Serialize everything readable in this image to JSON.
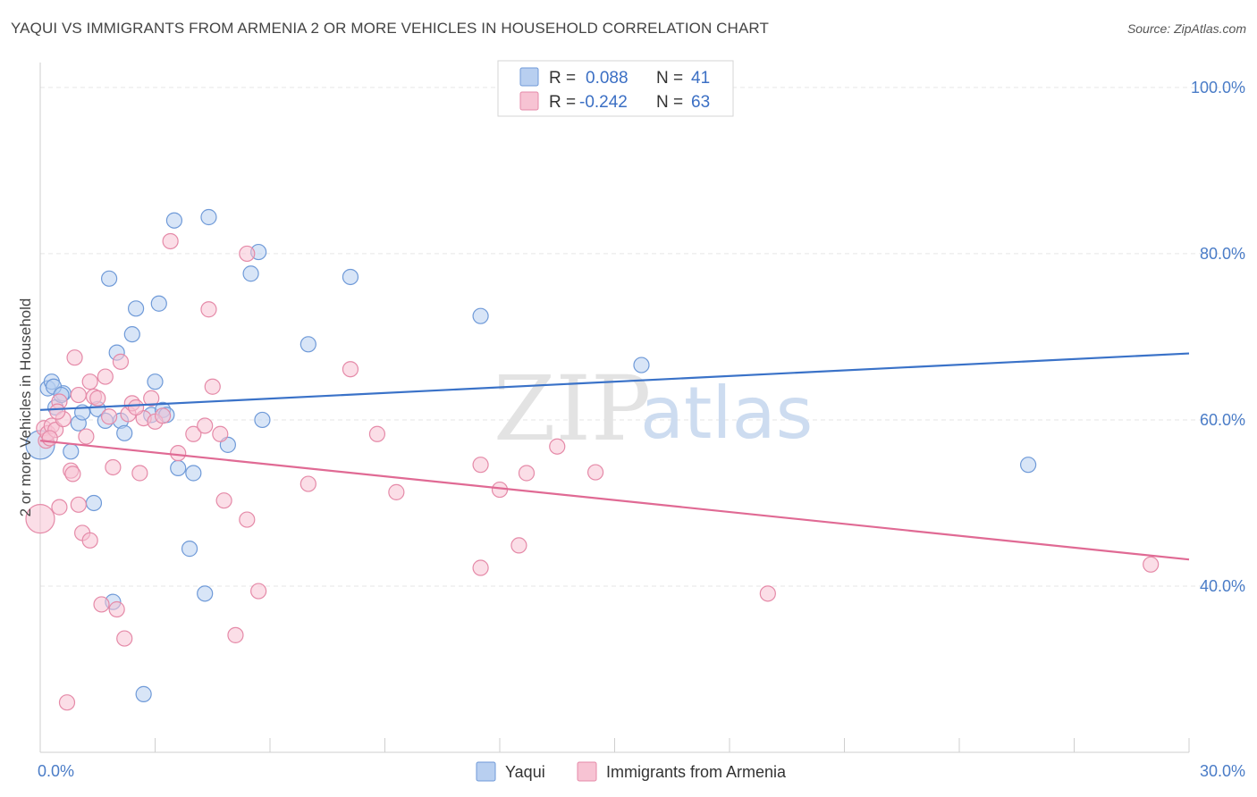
{
  "header": {
    "title": "YAQUI VS IMMIGRANTS FROM ARMENIA 2 OR MORE VEHICLES IN HOUSEHOLD CORRELATION CHART",
    "source": "Source: ZipAtlas.com"
  },
  "watermark": {
    "zip": "ZIP",
    "atlas": "atlas"
  },
  "legend_box": {
    "rows": [
      {
        "r_label": "R =",
        "r_value": "0.088",
        "n_label": "N =",
        "n_value": "41"
      },
      {
        "r_label": "R =",
        "r_value": "-0.242",
        "n_label": "N =",
        "n_value": "63"
      }
    ]
  },
  "colors": {
    "yaqui_fill": "#b8cff0",
    "yaqui_stroke": "#6f9ad8",
    "yaqui_line": "#3a72c8",
    "armenia_fill": "#f7c3d3",
    "armenia_stroke": "#e58aa8",
    "armenia_line": "#e06a94",
    "grid": "#e6e6e6",
    "tick_text": "#4a7cc7"
  },
  "chart_data": {
    "type": "scatter",
    "title": "YAQUI VS IMMIGRANTS FROM ARMENIA 2 OR MORE VEHICLES IN HOUSEHOLD CORRELATION CHART",
    "xlabel": "",
    "ylabel": "2 or more Vehicles in Household",
    "xlim": [
      0,
      30
    ],
    "ylim": [
      20,
      103
    ],
    "x_tick_labels": [
      "0.0%",
      "30.0%"
    ],
    "y_ticks": [
      40,
      60,
      80,
      100
    ],
    "y_tick_labels": [
      "40.0%",
      "60.0%",
      "80.0%",
      "100.0%"
    ],
    "grid": true,
    "legend_position": "top-center",
    "series": [
      {
        "name": "Yaqui",
        "color": "#6f9ad8",
        "trend": {
          "x": [
            0,
            30
          ],
          "y": [
            61.2,
            68.0
          ]
        },
        "points": [
          {
            "x": 0.0,
            "y": 57.0,
            "big": true
          },
          {
            "x": 0.2,
            "y": 63.8
          },
          {
            "x": 0.3,
            "y": 64.6
          },
          {
            "x": 0.4,
            "y": 61.5
          },
          {
            "x": 0.6,
            "y": 63.2
          },
          {
            "x": 0.8,
            "y": 56.2
          },
          {
            "x": 1.0,
            "y": 59.6
          },
          {
            "x": 1.1,
            "y": 60.9
          },
          {
            "x": 1.4,
            "y": 50.0
          },
          {
            "x": 1.5,
            "y": 61.3
          },
          {
            "x": 1.7,
            "y": 59.9
          },
          {
            "x": 1.8,
            "y": 77.0
          },
          {
            "x": 1.9,
            "y": 38.1
          },
          {
            "x": 2.0,
            "y": 68.1
          },
          {
            "x": 2.1,
            "y": 59.9
          },
          {
            "x": 2.2,
            "y": 58.4
          },
          {
            "x": 2.4,
            "y": 70.3
          },
          {
            "x": 2.5,
            "y": 73.4
          },
          {
            "x": 2.7,
            "y": 27.0
          },
          {
            "x": 2.9,
            "y": 60.6
          },
          {
            "x": 3.0,
            "y": 64.6
          },
          {
            "x": 3.1,
            "y": 74.0
          },
          {
            "x": 3.2,
            "y": 61.2
          },
          {
            "x": 3.3,
            "y": 60.6
          },
          {
            "x": 3.5,
            "y": 84.0
          },
          {
            "x": 3.6,
            "y": 54.2
          },
          {
            "x": 3.9,
            "y": 44.5
          },
          {
            "x": 4.0,
            "y": 53.6
          },
          {
            "x": 4.3,
            "y": 39.1
          },
          {
            "x": 4.4,
            "y": 84.4
          },
          {
            "x": 4.9,
            "y": 57.0
          },
          {
            "x": 5.5,
            "y": 77.6
          },
          {
            "x": 5.7,
            "y": 80.2
          },
          {
            "x": 5.8,
            "y": 60.0
          },
          {
            "x": 7.0,
            "y": 69.1
          },
          {
            "x": 8.1,
            "y": 77.2
          },
          {
            "x": 11.5,
            "y": 72.5
          },
          {
            "x": 15.7,
            "y": 66.6
          },
          {
            "x": 25.8,
            "y": 54.6
          },
          {
            "x": 0.35,
            "y": 64.0
          },
          {
            "x": 0.55,
            "y": 63.0
          }
        ]
      },
      {
        "name": "Immigrants from Armenia",
        "color": "#e58aa8",
        "trend": {
          "x": [
            0,
            30
          ],
          "y": [
            57.5,
            43.2
          ]
        },
        "points": [
          {
            "x": 0.0,
            "y": 48.1,
            "big": true
          },
          {
            "x": 0.1,
            "y": 59.0
          },
          {
            "x": 0.15,
            "y": 57.5
          },
          {
            "x": 0.2,
            "y": 58.4
          },
          {
            "x": 0.3,
            "y": 59.3
          },
          {
            "x": 0.4,
            "y": 58.8
          },
          {
            "x": 0.5,
            "y": 62.2
          },
          {
            "x": 0.5,
            "y": 49.5
          },
          {
            "x": 0.6,
            "y": 60.1
          },
          {
            "x": 0.7,
            "y": 26.0
          },
          {
            "x": 0.8,
            "y": 53.9
          },
          {
            "x": 0.85,
            "y": 53.5
          },
          {
            "x": 0.9,
            "y": 67.5
          },
          {
            "x": 1.0,
            "y": 49.8
          },
          {
            "x": 1.0,
            "y": 63.0
          },
          {
            "x": 1.1,
            "y": 46.4
          },
          {
            "x": 1.3,
            "y": 45.5
          },
          {
            "x": 1.3,
            "y": 64.6
          },
          {
            "x": 1.4,
            "y": 62.8
          },
          {
            "x": 1.5,
            "y": 62.6
          },
          {
            "x": 1.6,
            "y": 37.8
          },
          {
            "x": 1.7,
            "y": 65.2
          },
          {
            "x": 1.8,
            "y": 60.4
          },
          {
            "x": 1.9,
            "y": 54.3
          },
          {
            "x": 2.0,
            "y": 37.2
          },
          {
            "x": 2.1,
            "y": 67.0
          },
          {
            "x": 2.2,
            "y": 33.7
          },
          {
            "x": 2.3,
            "y": 60.7
          },
          {
            "x": 2.4,
            "y": 62.0
          },
          {
            "x": 2.6,
            "y": 53.6
          },
          {
            "x": 2.7,
            "y": 60.2
          },
          {
            "x": 2.9,
            "y": 62.6
          },
          {
            "x": 3.0,
            "y": 59.8
          },
          {
            "x": 3.4,
            "y": 81.5
          },
          {
            "x": 3.6,
            "y": 56.0
          },
          {
            "x": 4.0,
            "y": 58.3
          },
          {
            "x": 4.3,
            "y": 59.3
          },
          {
            "x": 4.4,
            "y": 73.3
          },
          {
            "x": 4.5,
            "y": 64.0
          },
          {
            "x": 4.7,
            "y": 58.3
          },
          {
            "x": 4.8,
            "y": 50.3
          },
          {
            "x": 5.1,
            "y": 34.1
          },
          {
            "x": 5.4,
            "y": 48.0
          },
          {
            "x": 5.4,
            "y": 80.0
          },
          {
            "x": 5.7,
            "y": 39.4
          },
          {
            "x": 7.0,
            "y": 52.3
          },
          {
            "x": 8.1,
            "y": 66.1
          },
          {
            "x": 8.8,
            "y": 58.3
          },
          {
            "x": 9.3,
            "y": 51.3
          },
          {
            "x": 11.5,
            "y": 54.6
          },
          {
            "x": 11.5,
            "y": 42.2
          },
          {
            "x": 12.0,
            "y": 51.6
          },
          {
            "x": 12.5,
            "y": 44.9
          },
          {
            "x": 12.7,
            "y": 53.6
          },
          {
            "x": 13.5,
            "y": 56.8
          },
          {
            "x": 14.5,
            "y": 53.7
          },
          {
            "x": 19.0,
            "y": 39.1
          },
          {
            "x": 29.0,
            "y": 42.6
          },
          {
            "x": 0.25,
            "y": 57.8
          },
          {
            "x": 0.45,
            "y": 61.0
          },
          {
            "x": 1.2,
            "y": 58.0
          },
          {
            "x": 2.5,
            "y": 61.5
          },
          {
            "x": 3.2,
            "y": 60.5
          }
        ]
      }
    ]
  }
}
